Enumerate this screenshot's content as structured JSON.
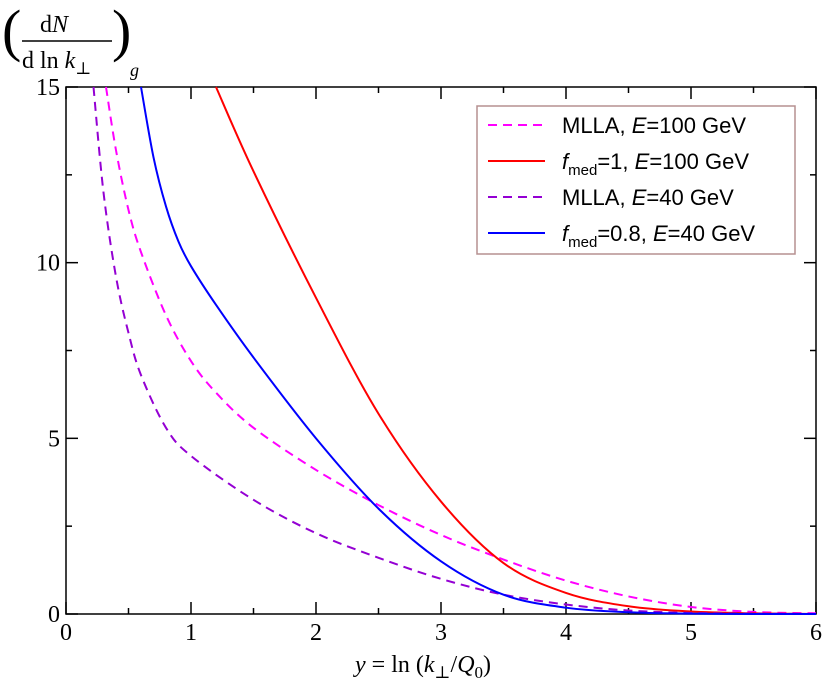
{
  "chart_data": {
    "type": "line",
    "title": "",
    "ylabel": {
      "numerator": "dN",
      "denominator": "d ln k",
      "perp": "⊥",
      "subscript": "g",
      "open_paren": "(",
      "close_paren": ")"
    },
    "xlabel": {
      "y": "y",
      "equals_ln": " = ln (",
      "k": "k",
      "perp": "⊥",
      "slash": "/",
      "Q": "Q",
      "zero": "0",
      "close": ")"
    },
    "xlim": [
      0,
      6
    ],
    "ylim": [
      0,
      15
    ],
    "xticks": [
      0,
      1,
      2,
      3,
      4,
      5,
      6
    ],
    "yticks": [
      0,
      5,
      10,
      15
    ],
    "xtick_labels": [
      "0",
      "1",
      "2",
      "3",
      "4",
      "5",
      "6"
    ],
    "ytick_labels": [
      "0",
      "5",
      "10",
      "15"
    ],
    "legend_position": "top-right",
    "series": [
      {
        "name": "MLLA, E=100 GeV",
        "legend_parts": {
          "pre": "MLLA, ",
          "E": "E",
          "post": "=100 GeV"
        },
        "color": "#ff00ff",
        "dashed": true,
        "x": [
          0.32,
          0.4,
          0.5,
          0.6,
          0.8,
          1.0,
          1.2,
          1.5,
          2.0,
          2.5,
          3.0,
          3.5,
          4.0,
          4.5,
          5.0,
          5.5,
          6.0
        ],
        "y": [
          15.0,
          13.2,
          11.5,
          10.3,
          8.5,
          7.2,
          6.3,
          5.3,
          4.1,
          3.1,
          2.25,
          1.55,
          0.95,
          0.5,
          0.2,
          0.06,
          0.02
        ]
      },
      {
        "name": "f_med=1, E=100 GeV",
        "legend_parts": {
          "f": "f",
          "sub": "med",
          "mid": "=1, ",
          "E": "E",
          "post": "=100 GeV"
        },
        "color": "#ff0000",
        "dashed": false,
        "x": [
          1.2,
          1.5,
          2.0,
          2.5,
          3.0,
          3.5,
          4.0,
          4.5,
          5.0,
          5.5,
          6.0
        ],
        "y": [
          15.0,
          12.6,
          9.0,
          5.7,
          3.2,
          1.45,
          0.6,
          0.22,
          0.07,
          0.02,
          0.0
        ]
      },
      {
        "name": "MLLA, E=40 GeV",
        "legend_parts": {
          "pre": "MLLA, ",
          "E": "E",
          "post": "=40 GeV"
        },
        "color": "#9400d3",
        "dashed": true,
        "x": [
          0.22,
          0.3,
          0.4,
          0.5,
          0.6,
          0.8,
          1.0,
          1.5,
          2.0,
          2.5,
          3.0,
          3.5,
          4.0,
          4.5,
          5.0,
          5.5,
          6.0
        ],
        "y": [
          15.0,
          12.0,
          9.6,
          8.0,
          6.8,
          5.3,
          4.5,
          3.25,
          2.3,
          1.6,
          1.0,
          0.55,
          0.27,
          0.1,
          0.03,
          0.01,
          0.0
        ]
      },
      {
        "name": "f_med=0.8, E=40 GeV",
        "legend_parts": {
          "f": "f",
          "sub": "med",
          "mid": "=0.8, ",
          "E": "E",
          "post": "=40 GeV"
        },
        "color": "#0000ff",
        "dashed": false,
        "x": [
          0.6,
          0.7,
          0.8,
          0.9,
          1.0,
          1.2,
          1.5,
          2.0,
          2.5,
          3.0,
          3.5,
          4.0,
          4.5,
          5.0,
          5.5,
          6.0
        ],
        "y": [
          15.0,
          13.0,
          11.6,
          10.6,
          9.9,
          8.8,
          7.3,
          5.0,
          3.0,
          1.5,
          0.55,
          0.18,
          0.05,
          0.01,
          0.0,
          0.0
        ]
      }
    ]
  }
}
